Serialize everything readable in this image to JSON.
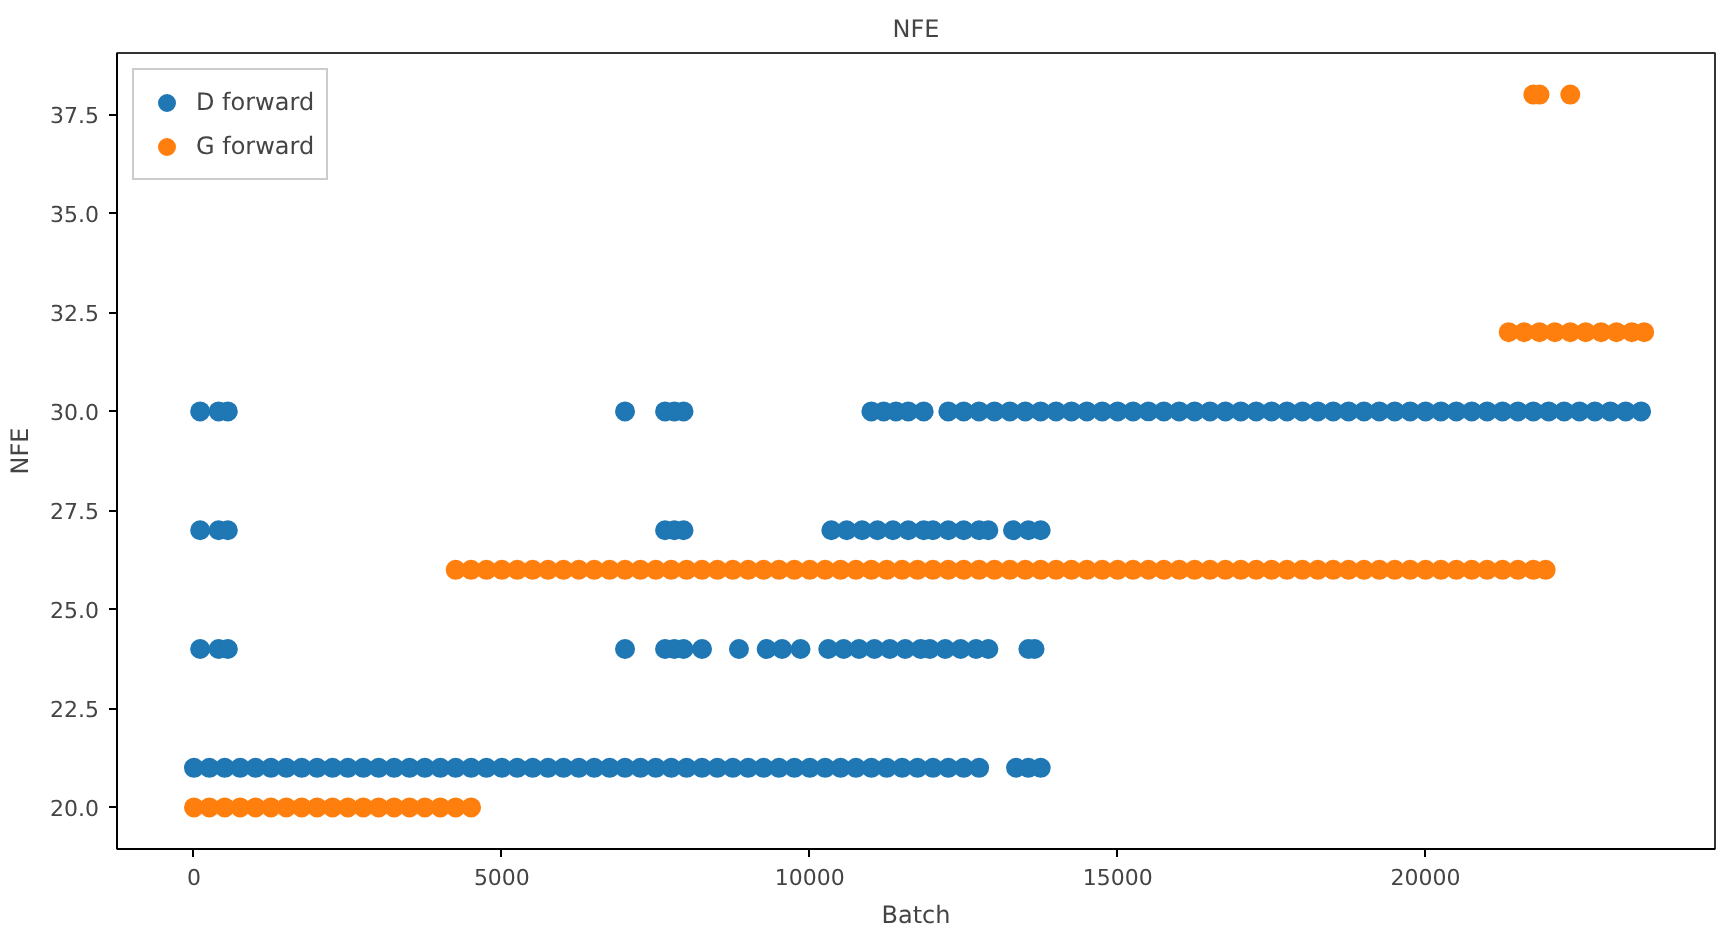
{
  "chart_data": {
    "type": "scatter",
    "title": "NFE",
    "xlabel": "Batch",
    "ylabel": "NFE",
    "xlim": [
      -1250,
      24700
    ],
    "ylim": [
      18.95,
      39.05
    ],
    "xticks": [
      0,
      5000,
      10000,
      15000,
      20000
    ],
    "yticks": [
      {
        "value": 20,
        "label": "20.0"
      },
      {
        "value": 22.5,
        "label": "22.5"
      },
      {
        "value": 25,
        "label": "25.0"
      },
      {
        "value": 27.5,
        "label": "27.5"
      },
      {
        "value": 30,
        "label": "30.0"
      },
      {
        "value": 32.5,
        "label": "32.5"
      },
      {
        "value": 35,
        "label": "35.0"
      },
      {
        "value": 37.5,
        "label": "37.5"
      }
    ],
    "grid": false,
    "legend": "top left",
    "marker": "circle",
    "series": [
      {
        "name": "D forward",
        "color": "#1f77b4",
        "x": [
          100,
          400,
          550,
          7000,
          7650,
          7800,
          7950,
          11000,
          11200,
          11400,
          11600,
          11850,
          12250,
          12500,
          12750,
          13000,
          13250,
          13500,
          13750,
          14000,
          14250,
          14500,
          14750,
          15000,
          15250,
          15500,
          15750,
          16000,
          16250,
          16500,
          16750,
          17000,
          17250,
          17500,
          17750,
          18000,
          18250,
          18500,
          18750,
          19000,
          19250,
          19500,
          19750,
          20000,
          20250,
          20500,
          20750,
          21000,
          21250,
          21500,
          21750,
          22000,
          22250,
          22500,
          22750,
          23000,
          23250,
          23500,
          100,
          400,
          550,
          7650,
          7800,
          7950,
          10350,
          10600,
          10850,
          11100,
          11350,
          11600,
          11850,
          12000,
          12250,
          12500,
          12750,
          12900,
          13300,
          13550,
          13750,
          100,
          400,
          550,
          7000,
          7650,
          7800,
          7950,
          8250,
          8850,
          9300,
          9550,
          9850,
          10300,
          10550,
          10800,
          11050,
          11300,
          11550,
          11800,
          11950,
          12200,
          12450,
          12700,
          12900,
          13550,
          13650,
          0,
          250,
          500,
          750,
          1000,
          1250,
          1500,
          1750,
          2000,
          2250,
          2500,
          2750,
          3000,
          3250,
          3500,
          3750,
          4000,
          4250,
          4500,
          4750,
          5000,
          5250,
          5500,
          5750,
          6000,
          6250,
          6500,
          6750,
          7000,
          7250,
          7500,
          7750,
          8000,
          8250,
          8500,
          8750,
          9000,
          9250,
          9500,
          9750,
          10000,
          10250,
          10500,
          10750,
          11000,
          11250,
          11500,
          11750,
          12000,
          12250,
          12500,
          12750,
          13350,
          13550,
          13750
        ],
        "values": [
          30,
          30,
          30,
          30,
          30,
          30,
          30,
          30,
          30,
          30,
          30,
          30,
          30,
          30,
          30,
          30,
          30,
          30,
          30,
          30,
          30,
          30,
          30,
          30,
          30,
          30,
          30,
          30,
          30,
          30,
          30,
          30,
          30,
          30,
          30,
          30,
          30,
          30,
          30,
          30,
          30,
          30,
          30,
          30,
          30,
          30,
          30,
          30,
          30,
          30,
          30,
          30,
          30,
          30,
          30,
          30,
          30,
          30,
          27,
          27,
          27,
          27,
          27,
          27,
          27,
          27,
          27,
          27,
          27,
          27,
          27,
          27,
          27,
          27,
          27,
          27,
          27,
          27,
          27,
          24,
          24,
          24,
          24,
          24,
          24,
          24,
          24,
          24,
          24,
          24,
          24,
          24,
          24,
          24,
          24,
          24,
          24,
          24,
          24,
          24,
          24,
          24,
          24,
          24,
          24,
          21,
          21,
          21,
          21,
          21,
          21,
          21,
          21,
          21,
          21,
          21,
          21,
          21,
          21,
          21,
          21,
          21,
          21,
          21,
          21,
          21,
          21,
          21,
          21,
          21,
          21,
          21,
          21,
          21,
          21,
          21,
          21,
          21,
          21,
          21,
          21,
          21,
          21,
          21,
          21,
          21,
          21,
          21,
          21,
          21,
          21,
          21,
          21,
          21,
          21,
          21,
          21,
          21,
          21,
          21
        ]
      },
      {
        "name": "G forward",
        "color": "#ff7f0e",
        "x": [
          0,
          250,
          500,
          750,
          1000,
          1250,
          1500,
          1750,
          2000,
          2250,
          2500,
          2750,
          3000,
          3250,
          3500,
          3750,
          4000,
          4250,
          4500,
          4250,
          4500,
          4750,
          5000,
          5250,
          5500,
          5750,
          6000,
          6250,
          6500,
          6750,
          7000,
          7250,
          7500,
          7750,
          8000,
          8250,
          8500,
          8750,
          9000,
          9250,
          9500,
          9750,
          10000,
          10250,
          10500,
          10750,
          11000,
          11250,
          11500,
          11750,
          12000,
          12250,
          12500,
          12750,
          13000,
          13250,
          13500,
          13750,
          14000,
          14250,
          14500,
          14750,
          15000,
          15250,
          15500,
          15750,
          16000,
          16250,
          16500,
          16750,
          17000,
          17250,
          17500,
          17750,
          18000,
          18250,
          18500,
          18750,
          19000,
          19250,
          19500,
          19750,
          20000,
          20250,
          20500,
          20750,
          21000,
          21250,
          21500,
          21750,
          21950,
          21350,
          21600,
          21850,
          22100,
          22350,
          22600,
          22850,
          23100,
          23350,
          23550,
          21750,
          21850,
          22350
        ],
        "values": [
          20,
          20,
          20,
          20,
          20,
          20,
          20,
          20,
          20,
          20,
          20,
          20,
          20,
          20,
          20,
          20,
          20,
          20,
          20,
          26,
          26,
          26,
          26,
          26,
          26,
          26,
          26,
          26,
          26,
          26,
          26,
          26,
          26,
          26,
          26,
          26,
          26,
          26,
          26,
          26,
          26,
          26,
          26,
          26,
          26,
          26,
          26,
          26,
          26,
          26,
          26,
          26,
          26,
          26,
          26,
          26,
          26,
          26,
          26,
          26,
          26,
          26,
          26,
          26,
          26,
          26,
          26,
          26,
          26,
          26,
          26,
          26,
          26,
          26,
          26,
          26,
          26,
          26,
          26,
          26,
          26,
          26,
          26,
          26,
          26,
          26,
          26,
          26,
          26,
          26,
          26,
          32,
          32,
          32,
          32,
          32,
          32,
          32,
          32,
          32,
          32,
          38,
          38,
          38
        ]
      }
    ]
  }
}
